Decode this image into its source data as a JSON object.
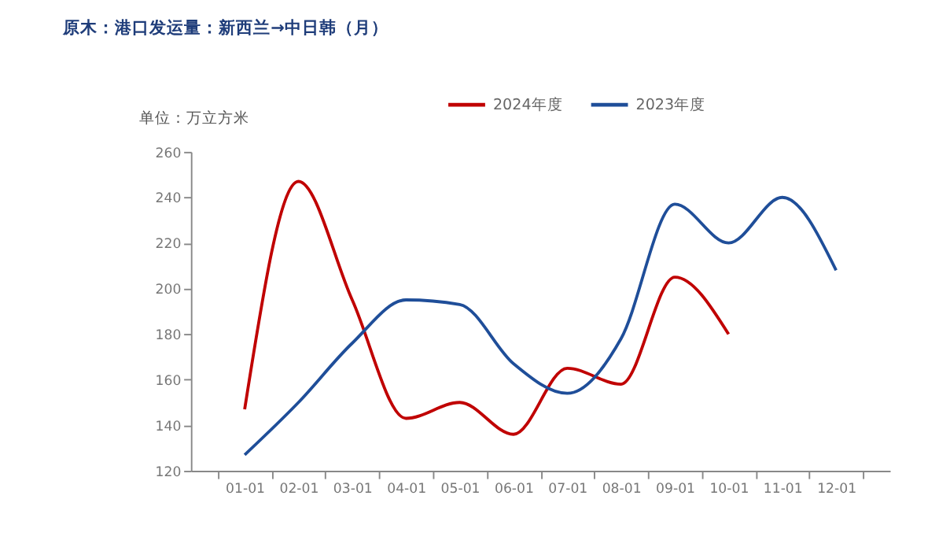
{
  "chart_data": {
    "type": "line",
    "title": "原木：港口发运量：新西兰→中日韩（月）",
    "ylabel": "单位：万立方米",
    "categories": [
      "01-01",
      "02-01",
      "03-01",
      "04-01",
      "05-01",
      "06-01",
      "07-01",
      "08-01",
      "09-01",
      "10-01",
      "11-01",
      "12-01"
    ],
    "series": [
      {
        "name": "2024年度",
        "color": "#c00000",
        "values": [
          147,
          247,
          195,
          143,
          150,
          136,
          165,
          158,
          205,
          180,
          null,
          null
        ]
      },
      {
        "name": "2023年度",
        "color": "#1f4e99",
        "values": [
          127,
          150,
          176,
          195,
          193,
          167,
          154,
          178,
          237,
          220,
          240,
          208
        ]
      }
    ],
    "ylim": [
      120,
      260
    ],
    "yticks": [
      120,
      140,
      160,
      180,
      200,
      220,
      240,
      260
    ],
    "grid": false,
    "legend": "top",
    "marker": "none",
    "line_style": "solid"
  }
}
